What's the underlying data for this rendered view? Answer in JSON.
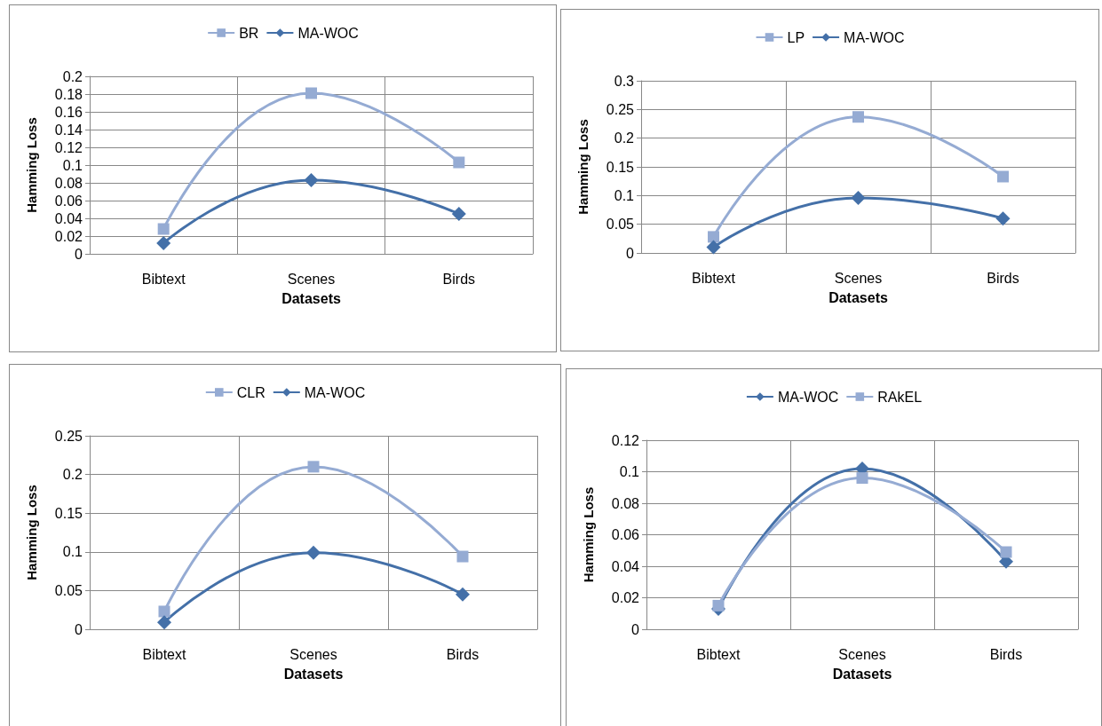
{
  "chart_data": [
    {
      "type": "line",
      "xlabel": "Datasets",
      "ylabel": "Hamming Loss",
      "categories": [
        "Bibtext",
        "Scenes",
        "Birds"
      ],
      "ylim": [
        0,
        0.2
      ],
      "yticks": [
        0,
        0.02,
        0.04,
        0.06,
        0.08,
        0.1,
        0.12,
        0.14,
        0.16,
        0.18,
        0.2
      ],
      "grid": true,
      "legend": "top",
      "series": [
        {
          "name": "BR",
          "color": "#95abd3",
          "marker": "square",
          "values": [
            0.028,
            0.181,
            0.103
          ]
        },
        {
          "name": "MA-WOC",
          "color": "#4470a8",
          "marker": "diamond",
          "values": [
            0.012,
            0.083,
            0.045
          ]
        }
      ]
    },
    {
      "type": "line",
      "xlabel": "Datasets",
      "ylabel": "Hamming Loss",
      "categories": [
        "Bibtext",
        "Scenes",
        "Birds"
      ],
      "ylim": [
        0,
        0.3
      ],
      "yticks": [
        0,
        0.05,
        0.1,
        0.15,
        0.2,
        0.25,
        0.3
      ],
      "grid": true,
      "legend": "top",
      "series": [
        {
          "name": "LP",
          "color": "#95abd3",
          "marker": "square",
          "values": [
            0.028,
            0.237,
            0.133
          ]
        },
        {
          "name": "MA-WOC",
          "color": "#4470a8",
          "marker": "diamond",
          "values": [
            0.01,
            0.096,
            0.06
          ]
        }
      ]
    },
    {
      "type": "line",
      "xlabel": "Datasets",
      "ylabel": "Hamming Loss",
      "categories": [
        "Bibtext",
        "Scenes",
        "Birds"
      ],
      "ylim": [
        0,
        0.25
      ],
      "yticks": [
        0,
        0.05,
        0.1,
        0.15,
        0.2,
        0.25
      ],
      "grid": true,
      "legend": "top",
      "series": [
        {
          "name": "CLR",
          "color": "#95abd3",
          "marker": "square",
          "values": [
            0.023,
            0.21,
            0.094
          ]
        },
        {
          "name": "MA-WOC",
          "color": "#4470a8",
          "marker": "diamond",
          "values": [
            0.009,
            0.099,
            0.045
          ]
        }
      ]
    },
    {
      "type": "line",
      "xlabel": "Datasets",
      "ylabel": "Hamming Loss",
      "categories": [
        "Bibtext",
        "Scenes",
        "Birds"
      ],
      "ylim": [
        0,
        0.12
      ],
      "yticks": [
        0,
        0.02,
        0.04,
        0.06,
        0.08,
        0.1,
        0.12
      ],
      "grid": true,
      "legend": "top",
      "series": [
        {
          "name": "MA-WOC",
          "color": "#4470a8",
          "marker": "diamond",
          "values": [
            0.013,
            0.102,
            0.043
          ]
        },
        {
          "name": "RAkEL",
          "color": "#95abd3",
          "marker": "square",
          "values": [
            0.015,
            0.096,
            0.049
          ]
        }
      ]
    }
  ]
}
